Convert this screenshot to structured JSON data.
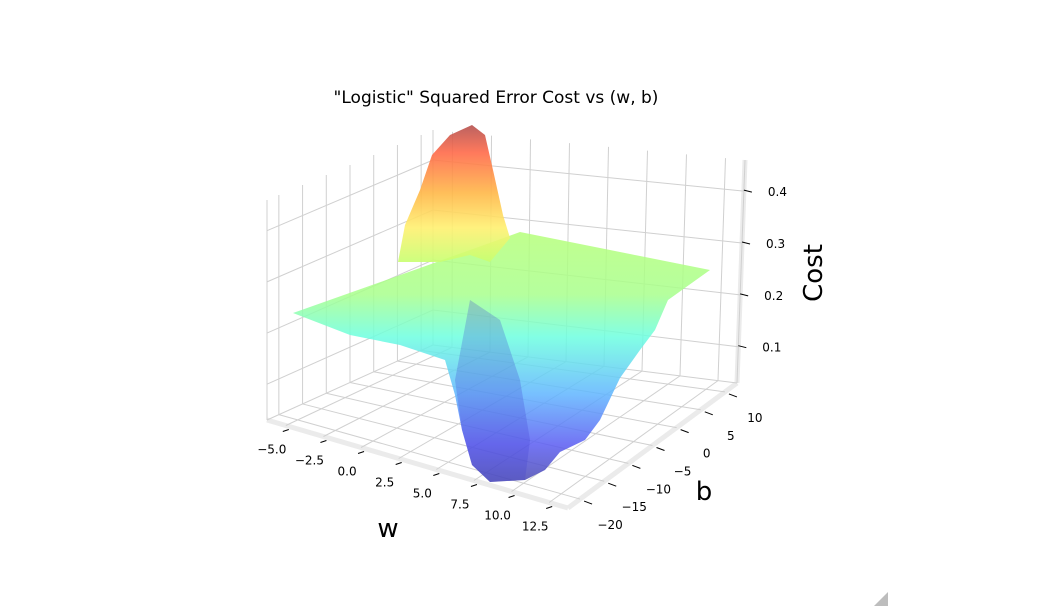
{
  "chart_data": {
    "type": "surface3d",
    "title": "\"Logistic\" Squared Error Cost vs (w, b)",
    "xlabel": "w",
    "ylabel": "b",
    "zlabel": "Cost",
    "x_ticks": [
      "−5.0",
      "−2.5",
      "0.0",
      "2.5",
      "5.0",
      "7.5",
      "10.0",
      "12.5"
    ],
    "y_ticks": [
      "10",
      "5",
      "0",
      "−5",
      "−10",
      "−15",
      "−20"
    ],
    "z_ticks": [
      "0.1",
      "0.2",
      "0.3",
      "0.4"
    ],
    "xlim": [
      -6,
      13
    ],
    "ylim": [
      -21,
      12
    ],
    "zlim": [
      0.0,
      0.45
    ],
    "colormap": "jet",
    "grid": true,
    "surface_notes": {
      "plateau_cost": 0.2,
      "max_cost": 0.45,
      "min_cost": 0.0
    }
  }
}
